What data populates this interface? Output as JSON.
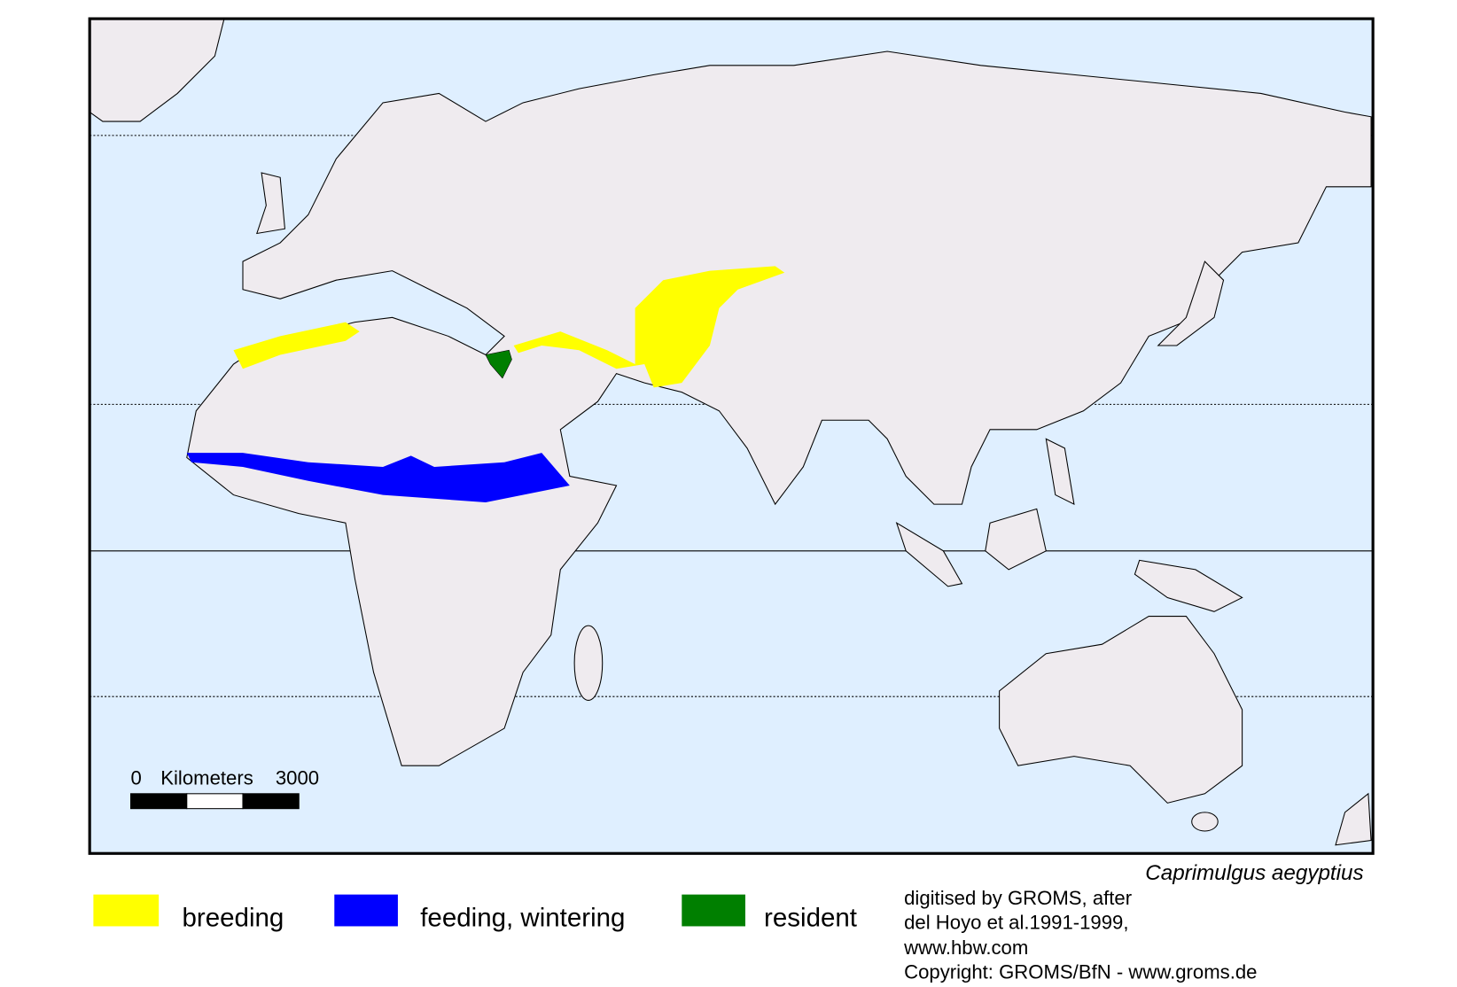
{
  "species": "Caprimulgus aegyptius",
  "legend": [
    {
      "label": "breeding",
      "color": "#ffff00"
    },
    {
      "label": "feeding, wintering",
      "color": "#0000ff"
    },
    {
      "label": "resident",
      "color": "#007f00"
    }
  ],
  "scale_bar": {
    "start": "0",
    "unit": "Kilometers",
    "end": "3000"
  },
  "credits": [
    "digitised by GROMS, after",
    "del Hoyo et al.1991-1999,",
    "www.hbw.com",
    "Copyright: GROMS/BfN - www.groms.de"
  ]
}
